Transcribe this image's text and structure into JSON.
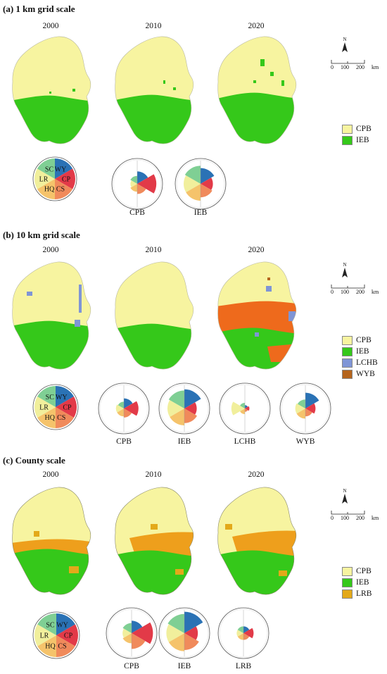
{
  "colors": {
    "CPB": "#f7f4a0",
    "IEB": "#35c81a",
    "LCHB": "#7f95d6",
    "WYB": "#b5651d",
    "LRB": "#e3a91a",
    "orange_10km": "#ee6a1c",
    "county_orange": "#ee9f1c",
    "WY": "#2a72b5",
    "CP": "#e23a48",
    "CS": "#f08a5b",
    "HQ": "#f5c36b",
    "LR": "#f1ef9c",
    "SC": "#7fcf94"
  },
  "sections": [
    {
      "id": "a",
      "title": "(a) 1 km grid scale",
      "years": [
        "2000",
        "2010",
        "2020"
      ],
      "legend": [
        {
          "label": "CPB",
          "color_key": "CPB"
        },
        {
          "label": "IEB",
          "color_key": "IEB"
        }
      ],
      "rose_labels": [
        "CPB",
        "IEB"
      ],
      "scale": {
        "ticks": [
          "0",
          "100",
          "200"
        ],
        "unit": "km",
        "north": "N"
      }
    },
    {
      "id": "b",
      "title": "(b) 10 km grid scale",
      "years": [
        "2000",
        "2010",
        "2020"
      ],
      "legend": [
        {
          "label": "CPB",
          "color_key": "CPB"
        },
        {
          "label": "IEB",
          "color_key": "IEB"
        },
        {
          "label": "LCHB",
          "color_key": "LCHB"
        },
        {
          "label": "WYB",
          "color_key": "WYB"
        }
      ],
      "rose_labels": [
        "CPB",
        "IEB",
        "LCHB",
        "WYB"
      ],
      "scale": {
        "ticks": [
          "0",
          "100",
          "200"
        ],
        "unit": "km",
        "north": "N"
      }
    },
    {
      "id": "c",
      "title": "(c) County scale",
      "years": [
        "2000",
        "2010",
        "2020"
      ],
      "legend": [
        {
          "label": "CPB",
          "color_key": "CPB"
        },
        {
          "label": "IEB",
          "color_key": "IEB"
        },
        {
          "label": "LRB",
          "color_key": "LRB"
        }
      ],
      "rose_labels": [
        "CPB",
        "IEB",
        "LRB"
      ],
      "scale": {
        "ticks": [
          "0",
          "100",
          "200"
        ],
        "unit": "km",
        "north": "N"
      }
    }
  ],
  "key_sectors": [
    "WY",
    "CP",
    "CS",
    "HQ",
    "LR",
    "SC"
  ],
  "roses": {
    "a": [
      [
        0.55,
        0.85,
        0.45,
        0.35,
        0.3,
        0.35
      ],
      [
        0.7,
        0.55,
        0.6,
        0.75,
        0.75,
        0.8
      ]
    ],
    "b": [
      [
        0.45,
        0.65,
        0.4,
        0.35,
        0.35,
        0.3
      ],
      [
        0.85,
        0.55,
        0.65,
        0.75,
        0.75,
        0.8
      ],
      [
        0.15,
        0.2,
        0.15,
        0.25,
        0.6,
        0.25
      ],
      [
        0.7,
        0.45,
        0.35,
        0.45,
        0.45,
        0.4
      ]
    ],
    "c": [
      [
        0.55,
        0.95,
        0.7,
        0.45,
        0.4,
        0.45
      ],
      [
        0.95,
        0.6,
        0.75,
        0.8,
        0.8,
        0.85
      ],
      [
        0.3,
        0.45,
        0.3,
        0.3,
        0.3,
        0.3
      ]
    ]
  }
}
